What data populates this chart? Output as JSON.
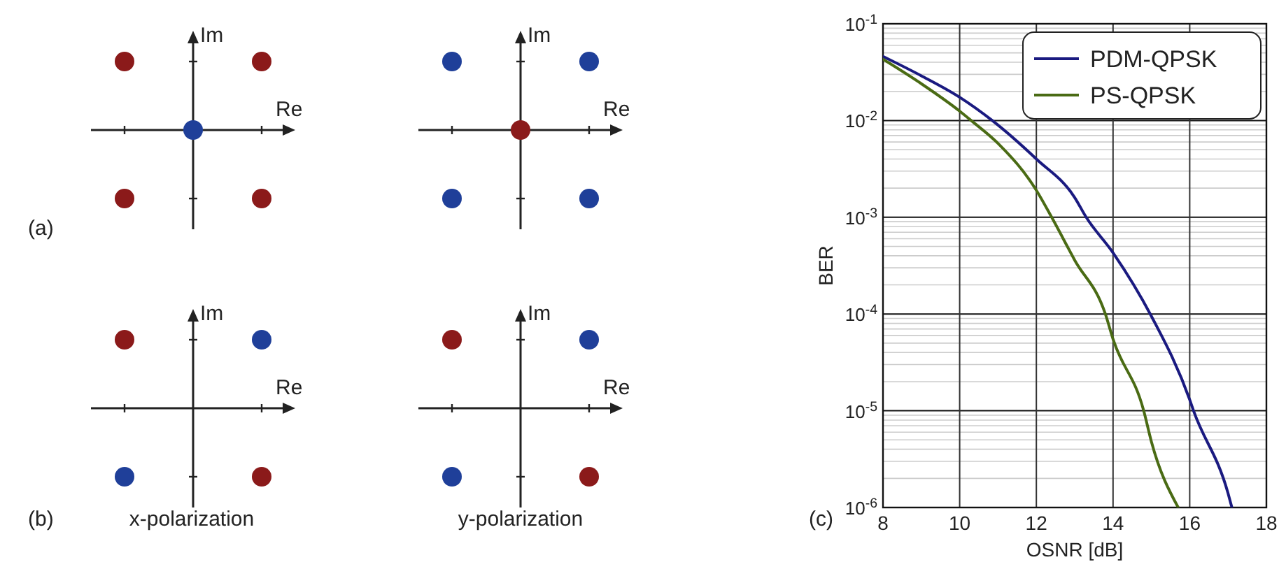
{
  "chart_data": [
    {
      "type": "other",
      "xlabel": "Re",
      "ylabel": "Im",
      "annotations": [
        "(a)"
      ]
    },
    {
      "type": "other",
      "xlabel": "Re",
      "ylabel": "Im"
    },
    {
      "type": "other",
      "xlabel": "Re",
      "ylabel": "Im",
      "annotations": [
        "(b)",
        "x-polarization"
      ]
    },
    {
      "type": "other",
      "xlabel": "Re",
      "ylabel": "Im",
      "annotations": [
        "y-polarization"
      ]
    },
    {
      "type": "line",
      "xlabel": "OSNR [dB]",
      "ylabel": "BER",
      "annotations": [
        "(c)"
      ],
      "log": "y",
      "grid": true,
      "legend": "top right",
      "marker": "none",
      "line_style": "solid",
      "xlim": [
        8,
        18
      ],
      "xticks": [
        8,
        10,
        12,
        14,
        16,
        18
      ],
      "ylim": [
        1e-06,
        0.1
      ],
      "yticks": [
        {
          "value": 0.1,
          "label": "10$^{-1}$"
        },
        {
          "value": 0.01,
          "label": "10$^{-2}$"
        },
        {
          "value": 0.001,
          "label": "10$^{-3}$"
        },
        {
          "value": 0.0001,
          "label": "10$^{-4}$"
        },
        {
          "value": 1e-05,
          "label": "10$^{-5}$"
        },
        {
          "value": 1e-06,
          "label": "10$^{-6}$"
        }
      ],
      "series": [
        {
          "name": "PDM-QPSK",
          "color": "#1a1a80",
          "x": [
            8,
            9,
            10,
            10.85,
            12,
            13,
            13.3,
            14,
            15,
            16,
            16.1,
            17,
            17.1
          ],
          "values": [
            0.046,
            0.029,
            0.0174,
            0.01,
            0.004,
            0.0016,
            0.001,
            0.00043,
            9.5e-05,
            1.3e-05,
            1e-05,
            1.4e-06,
            1e-06
          ]
        },
        {
          "name": "PS-QPSK",
          "color": "#4a6b14",
          "x": [
            8,
            9,
            10,
            10.3,
            11,
            12,
            12.4,
            13,
            13.8,
            14,
            14.8,
            15,
            15.7
          ],
          "values": [
            0.043,
            0.024,
            0.0125,
            0.01,
            0.0058,
            0.0019,
            0.001,
            0.00036,
            0.0001,
            5.5e-05,
            1e-05,
            4.8e-06,
            1e-06
          ]
        }
      ]
    }
  ]
}
